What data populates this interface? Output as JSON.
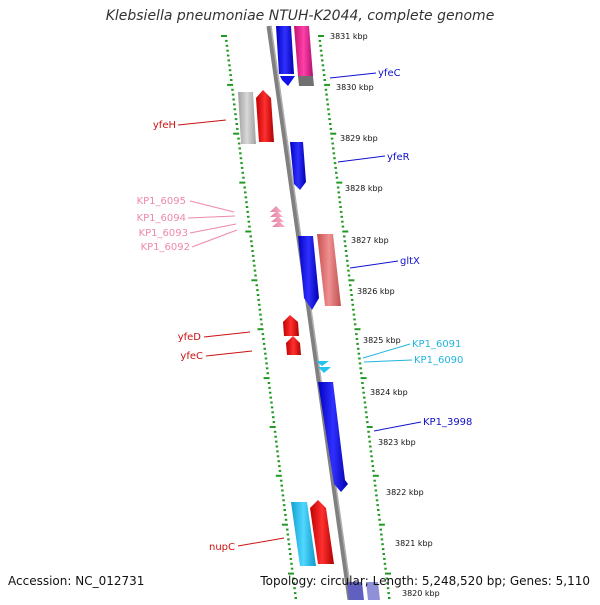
{
  "title": "Klebsiella pneumoniae NTUH-K2044, complete genome",
  "footer": {
    "accession": "Accession: NC_012731",
    "topology": "Topology: circular; Length: 5,248,520 bp; Genes: 5,110"
  },
  "colors": {
    "blue": "#1010e8",
    "red": "#ee1111",
    "magenta": "#ee2299",
    "salmon": "#e87070",
    "cyan": "#22c4ee",
    "pink": "#ee88aa",
    "grey": "#b8b8b8",
    "dots": "#229922",
    "backbone": "#808080"
  },
  "scale_labels": [
    "3831 kbp",
    "3830 kbp",
    "3829 kbp",
    "3828 kbp",
    "3827 kbp",
    "3826 kbp",
    "3825 kbp",
    "3824 kbp",
    "3823 kbp",
    "3822 kbp",
    "3821 kbp",
    "3820 kbp"
  ],
  "gene_labels": {
    "yfeC_top": "yfeC",
    "yfeH": "yfeH",
    "yfeR": "yfeR",
    "KP1_6095": "KP1_6095",
    "KP1_6094": "KP1_6094",
    "KP1_6093": "KP1_6093",
    "KP1_6092": "KP1_6092",
    "gltX": "gltX",
    "yfeD": "yfeD",
    "yfeC_bottom": "yfeC",
    "KP1_6091": "KP1_6091",
    "KP1_6090": "KP1_6090",
    "KP1_3998": "KP1_3998",
    "nupC": "nupC"
  }
}
